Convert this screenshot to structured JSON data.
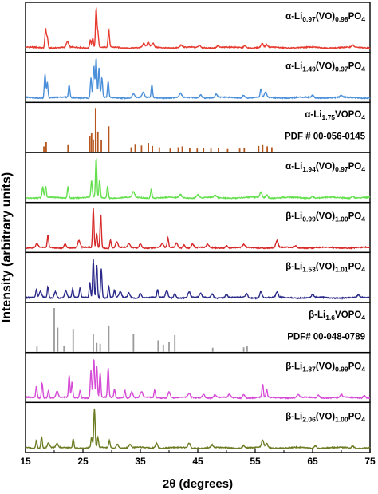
{
  "chart_data": {
    "type": "line",
    "xlabel": "2θ (degrees)",
    "ylabel": "Intensity (arbitrary units)",
    "xlim": [
      15,
      75
    ],
    "xticks": [
      15,
      25,
      35,
      45,
      55,
      65,
      75
    ],
    "grid": false,
    "panels": [
      {
        "kind": "pattern",
        "color": "#e63a2e",
        "label_parts": [
          "α-Li",
          "0.97",
          "(VO)",
          "0.98",
          "PO",
          "4"
        ],
        "peaks": [
          [
            18.5,
            0.5
          ],
          [
            18.8,
            0.28
          ],
          [
            22.3,
            0.14
          ],
          [
            26.3,
            0.2
          ],
          [
            26.7,
            0.25
          ],
          [
            27.3,
            1.0
          ],
          [
            27.6,
            0.4
          ],
          [
            29.5,
            0.45
          ],
          [
            35.6,
            0.1
          ],
          [
            36.4,
            0.12
          ],
          [
            37.2,
            0.1
          ],
          [
            42.1,
            0.06
          ],
          [
            45.3,
            0.06
          ],
          [
            48.5,
            0.05
          ],
          [
            53.2,
            0.05
          ],
          [
            56.2,
            0.1
          ],
          [
            57.0,
            0.06
          ],
          [
            72.0,
            0.05
          ]
        ]
      },
      {
        "kind": "pattern",
        "color": "#4a8fd9",
        "label_parts": [
          "α-Li",
          "1.49",
          "(VO)",
          "0.97",
          "PO",
          "4"
        ],
        "peaks": [
          [
            18.4,
            0.62
          ],
          [
            18.8,
            0.4
          ],
          [
            22.6,
            0.32
          ],
          [
            26.4,
            0.5
          ],
          [
            26.9,
            0.82
          ],
          [
            27.3,
            1.0
          ],
          [
            27.8,
            0.75
          ],
          [
            28.3,
            0.5
          ],
          [
            29.4,
            0.4
          ],
          [
            33.8,
            0.1
          ],
          [
            35.5,
            0.12
          ],
          [
            37.0,
            0.32
          ],
          [
            42.0,
            0.1
          ],
          [
            45.5,
            0.08
          ],
          [
            48.2,
            0.08
          ],
          [
            53.0,
            0.07
          ],
          [
            56.0,
            0.22
          ],
          [
            56.8,
            0.14
          ],
          [
            65.0,
            0.06
          ],
          [
            70.0,
            0.05
          ]
        ]
      },
      {
        "kind": "ref",
        "color": "#b5561d",
        "label_parts": [
          "α-Li",
          "1.75",
          "VOPO",
          "4"
        ],
        "ref_text": "PDF # 00-056-0145",
        "sticks": [
          [
            18.2,
            0.12
          ],
          [
            18.6,
            0.22
          ],
          [
            22.4,
            0.15
          ],
          [
            26.2,
            0.36
          ],
          [
            26.5,
            0.42
          ],
          [
            26.8,
            0.28
          ],
          [
            27.2,
            1.0
          ],
          [
            27.6,
            0.46
          ],
          [
            28.2,
            0.26
          ],
          [
            29.5,
            0.58
          ],
          [
            33.4,
            0.1
          ],
          [
            34.1,
            0.16
          ],
          [
            35.2,
            0.14
          ],
          [
            36.4,
            0.2
          ],
          [
            37.1,
            0.13
          ],
          [
            38.3,
            0.1
          ],
          [
            40.2,
            0.07
          ],
          [
            41.6,
            0.1
          ],
          [
            42.3,
            0.12
          ],
          [
            43.6,
            0.09
          ],
          [
            44.9,
            0.07
          ],
          [
            46.0,
            0.08
          ],
          [
            47.3,
            0.07
          ],
          [
            48.6,
            0.09
          ],
          [
            50.2,
            0.06
          ],
          [
            52.3,
            0.07
          ],
          [
            53.1,
            0.08
          ],
          [
            55.6,
            0.13
          ],
          [
            56.3,
            0.15
          ],
          [
            57.1,
            0.12
          ],
          [
            57.9,
            0.1
          ]
        ]
      },
      {
        "kind": "pattern",
        "color": "#64e04e",
        "label_parts": [
          "α-Li",
          "1.94",
          "(VO)",
          "0.97",
          "PO",
          "4"
        ],
        "peaks": [
          [
            18.0,
            0.28
          ],
          [
            18.5,
            0.3
          ],
          [
            22.4,
            0.3
          ],
          [
            26.5,
            0.42
          ],
          [
            27.3,
            1.0
          ],
          [
            27.9,
            0.45
          ],
          [
            29.3,
            0.3
          ],
          [
            33.8,
            0.15
          ],
          [
            36.9,
            0.22
          ],
          [
            42.0,
            0.08
          ],
          [
            45.0,
            0.08
          ],
          [
            48.0,
            0.06
          ],
          [
            56.0,
            0.14
          ],
          [
            57.0,
            0.08
          ],
          [
            65.0,
            0.05
          ],
          [
            72.0,
            0.05
          ]
        ]
      },
      {
        "kind": "pattern",
        "color": "#d62828",
        "label_parts": [
          "β-Li",
          "0.99",
          "(VO)",
          "1.00",
          "PO",
          "4"
        ],
        "peaks": [
          [
            17.0,
            0.1
          ],
          [
            18.9,
            0.3
          ],
          [
            21.9,
            0.1
          ],
          [
            24.3,
            0.18
          ],
          [
            26.8,
            1.0
          ],
          [
            27.4,
            0.35
          ],
          [
            28.1,
            0.88
          ],
          [
            29.8,
            0.2
          ],
          [
            30.9,
            0.15
          ],
          [
            33.0,
            0.1
          ],
          [
            35.0,
            0.1
          ],
          [
            38.8,
            0.1
          ],
          [
            39.8,
            0.25
          ],
          [
            41.3,
            0.12
          ],
          [
            42.6,
            0.08
          ],
          [
            44.1,
            0.1
          ],
          [
            46.7,
            0.08
          ],
          [
            50.0,
            0.06
          ],
          [
            53.0,
            0.07
          ],
          [
            58.8,
            0.18
          ],
          [
            62.0,
            0.05
          ]
        ]
      },
      {
        "kind": "pattern",
        "color": "#2b2a8a",
        "label_parts": [
          "β-Li",
          "1.53",
          "(VO)",
          "1.01",
          "PO",
          "4"
        ],
        "peaks": [
          [
            16.9,
            0.2
          ],
          [
            17.6,
            0.15
          ],
          [
            18.9,
            0.28
          ],
          [
            20.2,
            0.16
          ],
          [
            22.0,
            0.18
          ],
          [
            23.2,
            0.22
          ],
          [
            24.5,
            0.25
          ],
          [
            26.2,
            0.4
          ],
          [
            26.8,
            1.0
          ],
          [
            27.4,
            0.85
          ],
          [
            28.2,
            0.75
          ],
          [
            29.5,
            0.3
          ],
          [
            30.5,
            0.2
          ],
          [
            31.5,
            0.15
          ],
          [
            33.0,
            0.12
          ],
          [
            35.0,
            0.12
          ],
          [
            38.0,
            0.2
          ],
          [
            39.6,
            0.18
          ],
          [
            41.0,
            0.1
          ],
          [
            43.5,
            0.15
          ],
          [
            45.5,
            0.1
          ],
          [
            47.5,
            0.1
          ],
          [
            50.0,
            0.08
          ],
          [
            53.5,
            0.1
          ],
          [
            56.0,
            0.16
          ],
          [
            58.8,
            0.14
          ],
          [
            65.0,
            0.07
          ],
          [
            73.0,
            0.06
          ]
        ]
      },
      {
        "kind": "ref",
        "color": "#9a9a9a",
        "label_parts": [
          "β-Li",
          "1.6",
          "VOPO",
          "4"
        ],
        "ref_text": "PDF# 00-048-0789",
        "sticks": [
          [
            17.0,
            0.12
          ],
          [
            20.0,
            1.0
          ],
          [
            20.6,
            0.55
          ],
          [
            21.7,
            0.14
          ],
          [
            23.3,
            0.52
          ],
          [
            26.8,
            0.4
          ],
          [
            27.4,
            0.2
          ],
          [
            28.0,
            0.18
          ],
          [
            29.5,
            0.6
          ],
          [
            33.8,
            0.4
          ],
          [
            38.1,
            0.26
          ],
          [
            39.0,
            0.16
          ],
          [
            40.0,
            0.22
          ],
          [
            41.0,
            0.38
          ],
          [
            47.6,
            0.09
          ],
          [
            53.0,
            0.1
          ],
          [
            53.6,
            0.12
          ]
        ]
      },
      {
        "kind": "pattern",
        "color": "#d64bd6",
        "label_parts": [
          "β-Li",
          "1.87",
          "(VO)",
          "0.99",
          "PO",
          "4"
        ],
        "peaks": [
          [
            16.9,
            0.3
          ],
          [
            17.9,
            0.38
          ],
          [
            19.0,
            0.2
          ],
          [
            20.5,
            0.16
          ],
          [
            22.6,
            0.55
          ],
          [
            23.1,
            0.4
          ],
          [
            24.5,
            0.2
          ],
          [
            26.4,
            0.7
          ],
          [
            26.9,
            1.0
          ],
          [
            27.4,
            0.82
          ],
          [
            28.0,
            0.62
          ],
          [
            29.4,
            0.75
          ],
          [
            30.5,
            0.22
          ],
          [
            32.3,
            0.2
          ],
          [
            33.5,
            0.15
          ],
          [
            35.2,
            0.15
          ],
          [
            37.5,
            0.2
          ],
          [
            40.0,
            0.15
          ],
          [
            43.5,
            0.1
          ],
          [
            46.0,
            0.1
          ],
          [
            48.0,
            0.08
          ],
          [
            50.5,
            0.08
          ],
          [
            53.0,
            0.08
          ],
          [
            56.3,
            0.35
          ],
          [
            57.0,
            0.2
          ],
          [
            62.5,
            0.08
          ],
          [
            66.0,
            0.07
          ],
          [
            70.0,
            0.07
          ],
          [
            74.0,
            0.06
          ]
        ]
      },
      {
        "kind": "pattern",
        "color": "#6b7c22",
        "label_parts": [
          "β-Li",
          "2.06",
          "(VO)",
          "1.00",
          "PO",
          "4"
        ],
        "peaks": [
          [
            16.9,
            0.2
          ],
          [
            17.8,
            0.3
          ],
          [
            19.0,
            0.12
          ],
          [
            20.5,
            0.1
          ],
          [
            23.3,
            0.22
          ],
          [
            26.5,
            0.28
          ],
          [
            27.0,
            1.0
          ],
          [
            27.6,
            0.25
          ],
          [
            29.6,
            0.2
          ],
          [
            31.0,
            0.1
          ],
          [
            33.2,
            0.08
          ],
          [
            37.8,
            0.13
          ],
          [
            43.5,
            0.12
          ],
          [
            47.5,
            0.07
          ],
          [
            53.0,
            0.07
          ],
          [
            56.3,
            0.18
          ],
          [
            57.0,
            0.1
          ],
          [
            65.5,
            0.06
          ],
          [
            72.0,
            0.05
          ]
        ]
      }
    ]
  }
}
